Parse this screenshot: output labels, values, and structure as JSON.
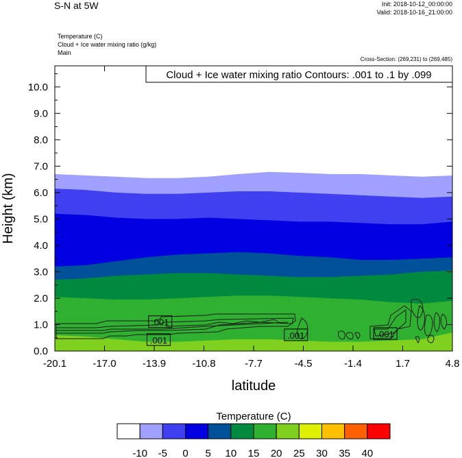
{
  "header": {
    "title": "S-N at 5W",
    "init": "Init: 2018-10-12_00:00:00",
    "valid": "Valid: 2018-10-16_21:00:00",
    "variables": [
      "Temperature   (C)",
      "Cloud + Ice water mixing ratio   (g/kg)",
      "Main"
    ],
    "cross_section": "Cross-Section: (269,231) to (269,485)"
  },
  "chart_data": {
    "type": "contour",
    "title": "S-N at 5W",
    "xlabel": "latitude",
    "ylabel": "Height (km)",
    "xlim": [
      -20.1,
      4.8
    ],
    "ylim": [
      0.0,
      10.8
    ],
    "x_ticks": [
      "-20.1",
      "-17.0",
      "-13.9",
      "-10.8",
      "-7.7",
      "-4.5",
      "-1.4",
      "1.7",
      "4.8"
    ],
    "y_ticks": [
      "0.0",
      "1.0",
      "2.0",
      "3.0",
      "4.0",
      "5.0",
      "6.0",
      "7.0",
      "8.0",
      "9.0",
      "10.0"
    ],
    "overlay_label": "Cloud + Ice water mixing ratio Contours: .001 to .1 by .099",
    "contour_labels": [
      {
        "text": ".001",
        "lat": -13.5,
        "h": 1.1
      },
      {
        "text": ".001",
        "lat": -13.6,
        "h": 0.42
      },
      {
        "text": ".001",
        "lat": -5.0,
        "h": 0.6
      },
      {
        "text": ".001",
        "lat": 0.6,
        "h": 0.65
      }
    ],
    "colorbar": {
      "title": "Temperature  (C)",
      "ticks": [
        "-10",
        "-5",
        "0",
        "5",
        "10",
        "15",
        "20",
        "25",
        "30",
        "35",
        "40"
      ],
      "colors": [
        "#ffffff",
        "#a0a0ff",
        "#4040f0",
        "#0000e0",
        "#00509a",
        "#008a40",
        "#30b030",
        "#80d020",
        "#dcf000",
        "#ffc000",
        "#ff6000",
        "#ff0000"
      ]
    },
    "temperature_bands": [
      {
        "range": "-10 to -5",
        "color": "#a0a0ff",
        "top": [
          6.7,
          6.65,
          6.6,
          6.55,
          6.55,
          6.6,
          6.7,
          6.78,
          6.75,
          6.7,
          6.7,
          6.65,
          6.6,
          6.65
        ]
      },
      {
        "range": "-5 to 0",
        "color": "#4040f0",
        "top": [
          6.15,
          6.1,
          6.0,
          5.95,
          5.95,
          6.0,
          6.05,
          6.05,
          6.0,
          5.95,
          5.9,
          5.85,
          5.8,
          5.85
        ]
      },
      {
        "range": "0 to 5",
        "color": "#0000e0",
        "top": [
          5.2,
          5.15,
          5.05,
          5.0,
          5.0,
          5.05,
          5.0,
          4.95,
          4.9,
          4.9,
          4.85,
          4.8,
          4.8,
          4.9
        ]
      },
      {
        "range": "5 to 10",
        "color": "#00509a",
        "top": [
          3.2,
          3.25,
          3.4,
          3.55,
          3.65,
          3.7,
          3.75,
          3.7,
          3.6,
          3.55,
          3.45,
          3.45,
          3.5,
          3.55
        ]
      },
      {
        "range": "10 to 15",
        "color": "#008a40",
        "top": [
          2.7,
          2.75,
          2.85,
          2.9,
          2.95,
          2.95,
          2.9,
          2.85,
          2.8,
          2.8,
          2.85,
          2.9,
          3.0,
          3.05
        ]
      },
      {
        "range": "15 to 20",
        "color": "#30b030",
        "top": [
          2.05,
          2.0,
          1.95,
          1.95,
          2.0,
          2.05,
          2.1,
          2.1,
          2.05,
          2.0,
          1.95,
          1.85,
          1.8,
          1.9
        ]
      },
      {
        "range": "20 to 25",
        "color": "#80d020",
        "top": [
          0.6,
          0.55,
          0.45,
          0.35,
          0.35,
          0.4,
          0.45,
          0.45,
          0.4,
          0.35,
          0.35,
          0.4,
          0.45,
          0.7
        ]
      }
    ]
  }
}
